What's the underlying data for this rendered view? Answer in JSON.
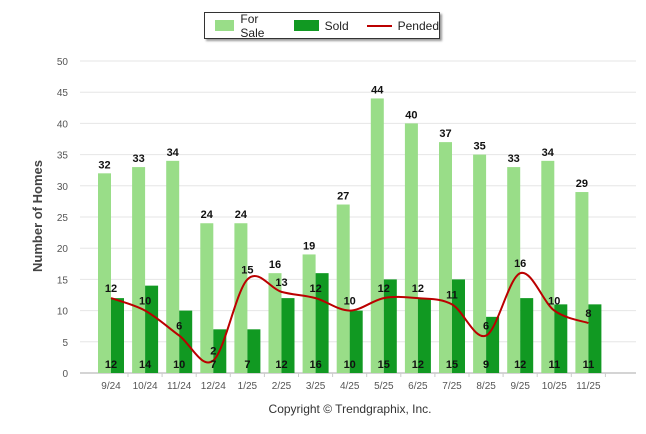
{
  "chart_data": {
    "type": "bar",
    "title": "",
    "xlabel": "",
    "ylabel": "Number of Homes",
    "ylim": [
      0,
      50
    ],
    "yticks": [
      0,
      5,
      10,
      15,
      20,
      25,
      30,
      35,
      40,
      45,
      50
    ],
    "grid": true,
    "legend_position": "top-center",
    "categories": [
      "9/24",
      "10/24",
      "11/24",
      "12/24",
      "1/25",
      "2/25",
      "3/25",
      "4/25",
      "5/25",
      "6/25",
      "7/25",
      "8/25",
      "9/25",
      "10/25",
      "11/25"
    ],
    "series": [
      {
        "name": "For Sale",
        "type": "bar",
        "color": "#99dd88",
        "values": [
          32,
          33,
          34,
          24,
          24,
          16,
          19,
          27,
          44,
          40,
          37,
          35,
          33,
          34,
          29
        ]
      },
      {
        "name": "Sold",
        "type": "bar",
        "color": "#119922",
        "values": [
          12,
          14,
          10,
          7,
          7,
          12,
          16,
          10,
          15,
          12,
          15,
          9,
          12,
          11,
          11
        ]
      },
      {
        "name": "Pended",
        "type": "line",
        "color": "#bb0000",
        "values": [
          12,
          10,
          6,
          2,
          15,
          13,
          12,
          10,
          12,
          12,
          11,
          6,
          16,
          10,
          8
        ]
      }
    ]
  },
  "copyright": "Copyright © Trendgraphix, Inc."
}
